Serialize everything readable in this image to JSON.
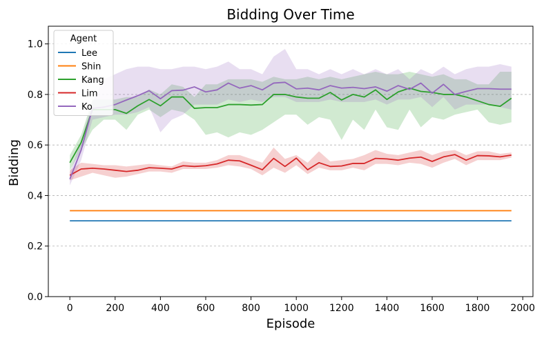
{
  "chart_data": {
    "type": "line",
    "title": "Bidding Over Time",
    "xlabel": "Episode",
    "ylabel": "Bidding",
    "xlim": [
      -95,
      2045
    ],
    "ylim": [
      0.0,
      1.07
    ],
    "xticks": [
      0,
      200,
      400,
      600,
      800,
      1000,
      1200,
      1400,
      1600,
      1800,
      2000
    ],
    "yticks": [
      0.0,
      0.2,
      0.4,
      0.6,
      0.8,
      1.0
    ],
    "xtick_labels": [
      "0",
      "200",
      "400",
      "600",
      "800",
      "1000",
      "1200",
      "1400",
      "1600",
      "1800",
      "2000"
    ],
    "ytick_labels": [
      "0.0",
      "0.2",
      "0.4",
      "0.6",
      "0.8",
      "1.0"
    ],
    "grid": "y-dashed",
    "legend": {
      "title": "Agent",
      "placement": "top-left"
    },
    "series": [
      {
        "name": "Lee",
        "color": "#1f77b4",
        "x": [
          0,
          1950
        ],
        "y": [
          0.3,
          0.3
        ]
      },
      {
        "name": "Shin",
        "color": "#ff7f0e",
        "x": [
          0,
          1950
        ],
        "y": [
          0.34,
          0.34
        ]
      },
      {
        "name": "Kang",
        "color": "#2ca02c",
        "x": [
          0,
          50,
          100,
          150,
          200,
          250,
          300,
          350,
          400,
          450,
          500,
          550,
          600,
          650,
          700,
          750,
          800,
          850,
          900,
          950,
          1000,
          1050,
          1100,
          1150,
          1200,
          1250,
          1300,
          1350,
          1400,
          1450,
          1500,
          1550,
          1600,
          1650,
          1700,
          1750,
          1800,
          1850,
          1900,
          1950
        ],
        "y": [
          0.53,
          0.61,
          0.74,
          0.74,
          0.74,
          0.725,
          0.755,
          0.78,
          0.755,
          0.79,
          0.79,
          0.745,
          0.748,
          0.748,
          0.76,
          0.76,
          0.758,
          0.76,
          0.8,
          0.8,
          0.79,
          0.785,
          0.785,
          0.808,
          0.778,
          0.8,
          0.79,
          0.818,
          0.78,
          0.81,
          0.825,
          0.812,
          0.808,
          0.8,
          0.8,
          0.79,
          0.775,
          0.76,
          0.753,
          0.785
        ],
        "y_lower": [
          0.5,
          0.58,
          0.66,
          0.7,
          0.7,
          0.66,
          0.72,
          0.74,
          0.71,
          0.74,
          0.73,
          0.7,
          0.64,
          0.65,
          0.63,
          0.65,
          0.64,
          0.66,
          0.69,
          0.72,
          0.72,
          0.68,
          0.71,
          0.7,
          0.62,
          0.7,
          0.66,
          0.74,
          0.67,
          0.66,
          0.74,
          0.67,
          0.71,
          0.7,
          0.72,
          0.73,
          0.74,
          0.69,
          0.68,
          0.69
        ],
        "y_upper": [
          0.56,
          0.64,
          0.78,
          0.78,
          0.78,
          0.79,
          0.79,
          0.82,
          0.8,
          0.84,
          0.83,
          0.79,
          0.84,
          0.84,
          0.86,
          0.86,
          0.86,
          0.85,
          0.87,
          0.86,
          0.86,
          0.87,
          0.86,
          0.87,
          0.86,
          0.87,
          0.88,
          0.89,
          0.88,
          0.88,
          0.89,
          0.88,
          0.87,
          0.88,
          0.86,
          0.86,
          0.84,
          0.84,
          0.89,
          0.89
        ]
      },
      {
        "name": "Lim",
        "color": "#d62728",
        "x": [
          0,
          50,
          100,
          150,
          200,
          250,
          300,
          350,
          400,
          450,
          500,
          550,
          600,
          650,
          700,
          750,
          800,
          850,
          900,
          950,
          1000,
          1050,
          1100,
          1150,
          1200,
          1250,
          1300,
          1350,
          1400,
          1450,
          1500,
          1550,
          1600,
          1650,
          1700,
          1750,
          1800,
          1850,
          1900,
          1950
        ],
        "y": [
          0.48,
          0.505,
          0.508,
          0.505,
          0.5,
          0.495,
          0.5,
          0.51,
          0.508,
          0.505,
          0.518,
          0.515,
          0.518,
          0.525,
          0.54,
          0.537,
          0.52,
          0.502,
          0.547,
          0.515,
          0.548,
          0.502,
          0.53,
          0.515,
          0.517,
          0.527,
          0.527,
          0.547,
          0.545,
          0.54,
          0.548,
          0.552,
          0.535,
          0.553,
          0.562,
          0.54,
          0.558,
          0.557,
          0.553,
          0.56
        ],
        "y_lower": [
          0.46,
          0.475,
          0.49,
          0.48,
          0.47,
          0.475,
          0.485,
          0.495,
          0.495,
          0.49,
          0.505,
          0.505,
          0.505,
          0.51,
          0.52,
          0.515,
          0.505,
          0.48,
          0.51,
          0.49,
          0.52,
          0.485,
          0.51,
          0.5,
          0.5,
          0.51,
          0.5,
          0.525,
          0.525,
          0.52,
          0.53,
          0.525,
          0.51,
          0.53,
          0.545,
          0.52,
          0.54,
          0.54,
          0.54,
          0.55
        ],
        "y_upper": [
          0.5,
          0.53,
          0.525,
          0.52,
          0.52,
          0.515,
          0.52,
          0.525,
          0.52,
          0.515,
          0.535,
          0.53,
          0.53,
          0.54,
          0.56,
          0.56,
          0.545,
          0.53,
          0.59,
          0.545,
          0.56,
          0.53,
          0.575,
          0.535,
          0.54,
          0.545,
          0.56,
          0.58,
          0.565,
          0.56,
          0.57,
          0.58,
          0.56,
          0.575,
          0.58,
          0.56,
          0.575,
          0.575,
          0.565,
          0.57
        ]
      },
      {
        "name": "Ko",
        "color": "#9467bd",
        "x": [
          0,
          50,
          100,
          150,
          200,
          250,
          300,
          350,
          400,
          450,
          500,
          550,
          600,
          650,
          700,
          750,
          800,
          850,
          900,
          950,
          1000,
          1050,
          1100,
          1150,
          1200,
          1250,
          1300,
          1350,
          1400,
          1450,
          1500,
          1550,
          1600,
          1650,
          1700,
          1750,
          1800,
          1850,
          1900,
          1950
        ],
        "y": [
          0.465,
          0.58,
          0.745,
          0.75,
          0.76,
          0.778,
          0.795,
          0.815,
          0.783,
          0.815,
          0.817,
          0.83,
          0.81,
          0.818,
          0.845,
          0.825,
          0.835,
          0.818,
          0.845,
          0.848,
          0.822,
          0.825,
          0.818,
          0.835,
          0.825,
          0.828,
          0.823,
          0.83,
          0.813,
          0.835,
          0.82,
          0.845,
          0.805,
          0.84,
          0.8,
          0.812,
          0.823,
          0.823,
          0.821,
          0.821
        ],
        "y_lower": [
          0.44,
          0.54,
          0.7,
          0.71,
          0.72,
          0.72,
          0.73,
          0.75,
          0.65,
          0.7,
          0.72,
          0.76,
          0.76,
          0.76,
          0.78,
          0.77,
          0.78,
          0.77,
          0.79,
          0.79,
          0.77,
          0.77,
          0.77,
          0.78,
          0.77,
          0.77,
          0.77,
          0.78,
          0.76,
          0.78,
          0.78,
          0.79,
          0.75,
          0.79,
          0.74,
          0.76,
          0.76,
          0.76,
          0.75,
          0.74
        ],
        "y_upper": [
          0.49,
          0.62,
          0.77,
          0.86,
          0.88,
          0.9,
          0.91,
          0.91,
          0.9,
          0.9,
          0.91,
          0.91,
          0.9,
          0.91,
          0.93,
          0.9,
          0.9,
          0.88,
          0.95,
          0.98,
          0.9,
          0.9,
          0.88,
          0.9,
          0.88,
          0.9,
          0.88,
          0.9,
          0.88,
          0.9,
          0.86,
          0.9,
          0.88,
          0.91,
          0.88,
          0.9,
          0.91,
          0.91,
          0.92,
          0.91
        ]
      }
    ]
  }
}
